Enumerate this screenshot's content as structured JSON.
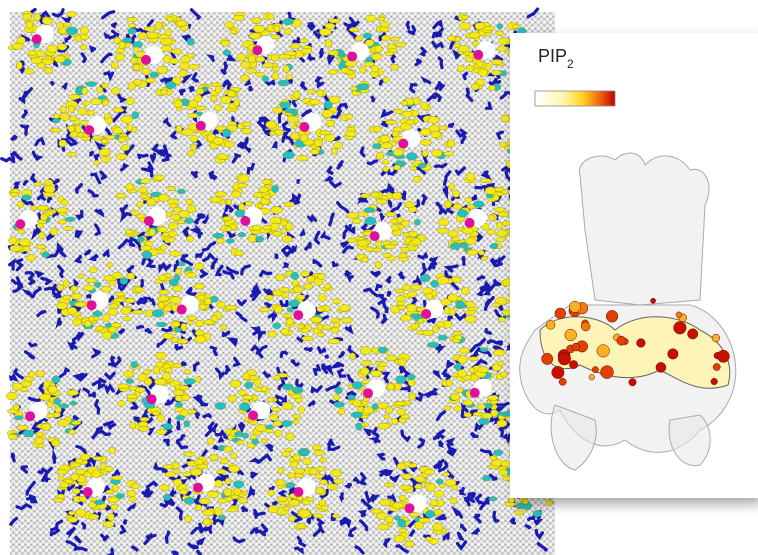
{
  "legend": {
    "label": "PIP",
    "subscript": "2"
  }
}
